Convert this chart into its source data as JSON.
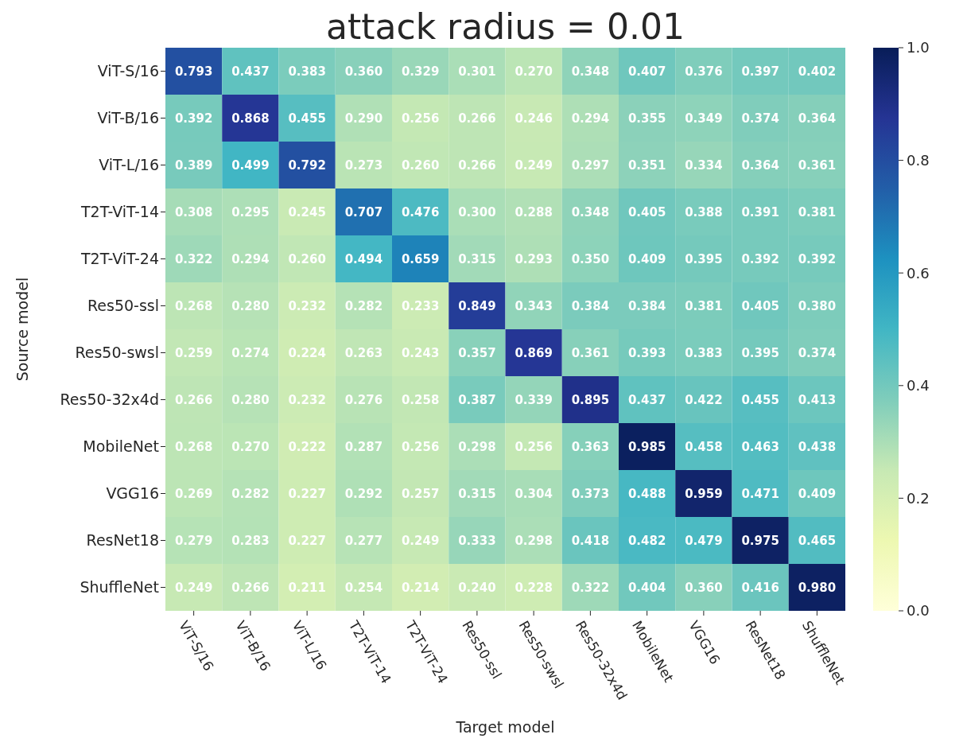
{
  "chart_data": {
    "type": "heatmap",
    "title": "attack radius = 0.01",
    "xlabel": "Target model",
    "ylabel": "Source model",
    "categories": [
      "ViT-S/16",
      "ViT-B/16",
      "ViT-L/16",
      "T2T-ViT-14",
      "T2T-ViT-24",
      "Res50-ssl",
      "Res50-swsl",
      "Res50-32x4d",
      "MobileNet",
      "VGG16",
      "ResNet18",
      "ShuffleNet"
    ],
    "y_categories": [
      "ViT-S/16",
      "ViT-B/16",
      "ViT-L/16",
      "T2T-ViT-14",
      "T2T-ViT-24",
      "Res50-ssl",
      "Res50-swsl",
      "Res50-32x4d",
      "MobileNet",
      "VGG16",
      "ResNet18",
      "ShuffleNet"
    ],
    "cells": [
      [
        0.793,
        0.437,
        0.383,
        0.36,
        0.329,
        0.301,
        0.27,
        0.348,
        0.407,
        0.376,
        0.397,
        0.402
      ],
      [
        0.392,
        0.868,
        0.455,
        0.29,
        0.256,
        0.266,
        0.246,
        0.294,
        0.355,
        0.349,
        0.374,
        0.364
      ],
      [
        0.389,
        0.499,
        0.792,
        0.273,
        0.26,
        0.266,
        0.249,
        0.297,
        0.351,
        0.334,
        0.364,
        0.361
      ],
      [
        0.308,
        0.295,
        0.245,
        0.707,
        0.476,
        0.3,
        0.288,
        0.348,
        0.405,
        0.388,
        0.391,
        0.381
      ],
      [
        0.322,
        0.294,
        0.26,
        0.494,
        0.659,
        0.315,
        0.293,
        0.35,
        0.409,
        0.395,
        0.392,
        0.392
      ],
      [
        0.268,
        0.28,
        0.232,
        0.282,
        0.233,
        0.849,
        0.343,
        0.384,
        0.384,
        0.381,
        0.405,
        0.38
      ],
      [
        0.259,
        0.274,
        0.224,
        0.263,
        0.243,
        0.357,
        0.869,
        0.361,
        0.393,
        0.383,
        0.395,
        0.374
      ],
      [
        0.266,
        0.28,
        0.232,
        0.276,
        0.258,
        0.387,
        0.339,
        0.895,
        0.437,
        0.422,
        0.455,
        0.413
      ],
      [
        0.268,
        0.27,
        0.222,
        0.287,
        0.256,
        0.298,
        0.256,
        0.363,
        0.985,
        0.458,
        0.463,
        0.438
      ],
      [
        0.269,
        0.282,
        0.227,
        0.292,
        0.257,
        0.315,
        0.304,
        0.373,
        0.488,
        0.959,
        0.471,
        0.409
      ],
      [
        0.279,
        0.283,
        0.227,
        0.277,
        0.249,
        0.333,
        0.298,
        0.418,
        0.482,
        0.479,
        0.975,
        0.465
      ],
      [
        0.249,
        0.266,
        0.211,
        0.254,
        0.214,
        0.24,
        0.228,
        0.322,
        0.404,
        0.36,
        0.416,
        0.98
      ]
    ],
    "clim": [
      0,
      1
    ],
    "cticks": [
      {
        "value": 0,
        "label": "0.0"
      },
      {
        "value": 0.2,
        "label": "0.2"
      },
      {
        "value": 0.4,
        "label": "0.4"
      },
      {
        "value": 0.6,
        "label": "0.6"
      },
      {
        "value": 0.8,
        "label": "0.8"
      },
      {
        "value": 1,
        "label": "1.0"
      }
    ],
    "cell_labels": [
      [
        "0.793",
        "0.437",
        "0.383",
        "0.360",
        "0.329",
        "0.301",
        "0.270",
        "0.348",
        "0.407",
        "0.376",
        "0.397",
        "0.402"
      ],
      [
        "0.392",
        "0.868",
        "0.455",
        "0.290",
        "0.256",
        "0.266",
        "0.246",
        "0.294",
        "0.355",
        "0.349",
        "0.374",
        "0.364"
      ],
      [
        "0.389",
        "0.499",
        "0.792",
        "0.273",
        "0.260",
        "0.266",
        "0.249",
        "0.297",
        "0.351",
        "0.334",
        "0.364",
        "0.361"
      ],
      [
        "0.308",
        "0.295",
        "0.245",
        "0.707",
        "0.476",
        "0.300",
        "0.288",
        "0.348",
        "0.405",
        "0.388",
        "0.391",
        "0.381"
      ],
      [
        "0.322",
        "0.294",
        "0.260",
        "0.494",
        "0.659",
        "0.315",
        "0.293",
        "0.350",
        "0.409",
        "0.395",
        "0.392",
        "0.392"
      ],
      [
        "0.268",
        "0.280",
        "0.232",
        "0.282",
        "0.233",
        "0.849",
        "0.343",
        "0.384",
        "0.384",
        "0.381",
        "0.405",
        "0.380"
      ],
      [
        "0.259",
        "0.274",
        "0.224",
        "0.263",
        "0.243",
        "0.357",
        "0.869",
        "0.361",
        "0.393",
        "0.383",
        "0.395",
        "0.374"
      ],
      [
        "0.266",
        "0.280",
        "0.232",
        "0.276",
        "0.258",
        "0.387",
        "0.339",
        "0.895",
        "0.437",
        "0.422",
        "0.455",
        "0.413"
      ],
      [
        "0.268",
        "0.270",
        "0.222",
        "0.287",
        "0.256",
        "0.298",
        "0.256",
        "0.363",
        "0.985",
        "0.458",
        "0.463",
        "0.438"
      ],
      [
        "0.269",
        "0.282",
        "0.227",
        "0.292",
        "0.257",
        "0.315",
        "0.304",
        "0.373",
        "0.488",
        "0.959",
        "0.471",
        "0.409"
      ],
      [
        "0.279",
        "0.283",
        "0.227",
        "0.277",
        "0.249",
        "0.333",
        "0.298",
        "0.418",
        "0.482",
        "0.479",
        "0.975",
        "0.465"
      ],
      [
        "0.249",
        "0.266",
        "0.211",
        "0.254",
        "0.214",
        "0.240",
        "0.228",
        "0.322",
        "0.404",
        "0.360",
        "0.416",
        "0.980"
      ]
    ]
  }
}
